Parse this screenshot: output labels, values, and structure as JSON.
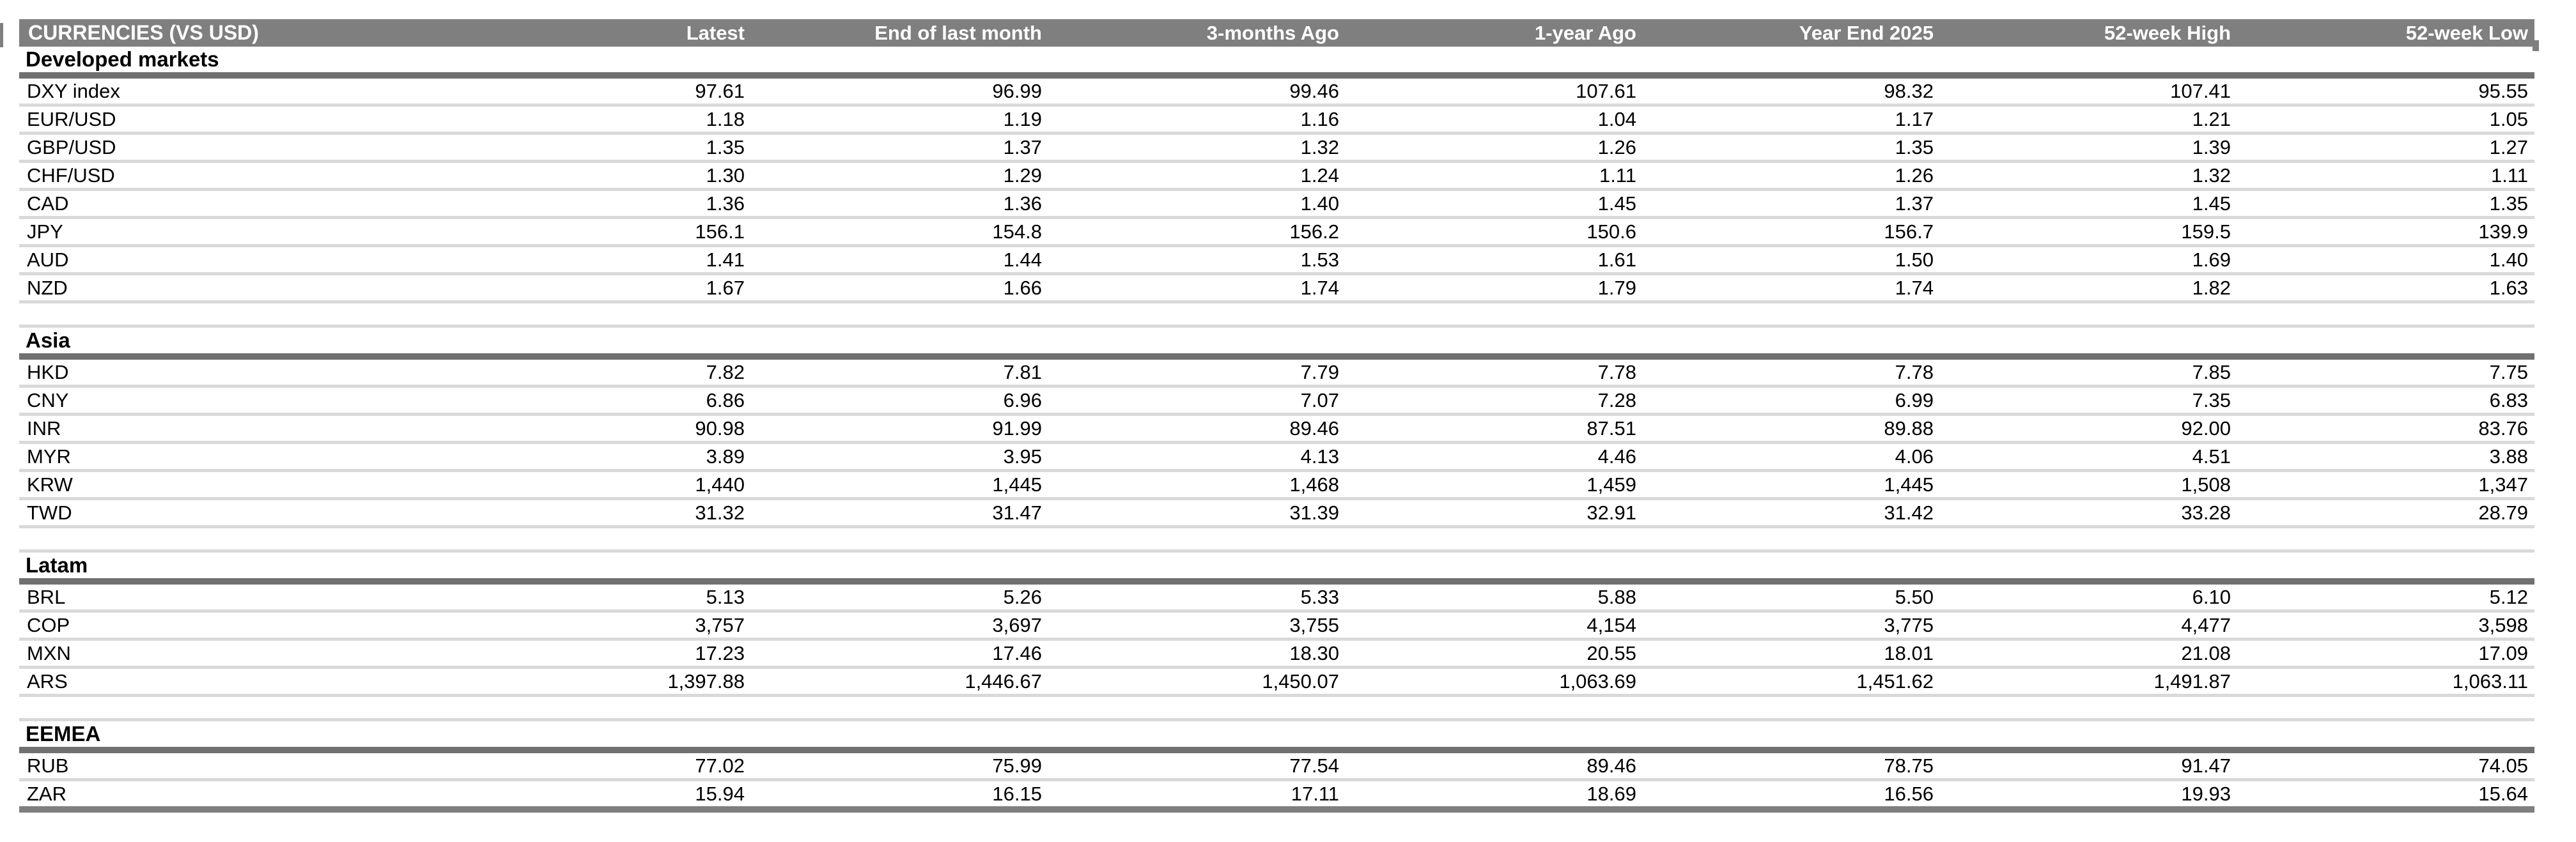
{
  "colors": {
    "header_background": "#7f7f7f",
    "header_text": "#ffffff",
    "section_underline": "#707070",
    "row_separator": "#d9d9d9",
    "table_bottom_bar": "#7f7f7f",
    "body_text": "#000000"
  },
  "table": {
    "title": "CURRENCIES (VS USD)",
    "columns": [
      "Latest",
      "End of last month",
      "3-months Ago",
      "1-year Ago",
      "Year End 2025",
      "52-week High",
      "52-week Low"
    ],
    "sections": [
      {
        "name": "Developed markets",
        "rows": [
          {
            "label": "DXY index",
            "values": [
              "97.61",
              "96.99",
              "99.46",
              "107.61",
              "98.32",
              "107.41",
              "95.55"
            ]
          },
          {
            "label": "EUR/USD",
            "values": [
              "1.18",
              "1.19",
              "1.16",
              "1.04",
              "1.17",
              "1.21",
              "1.05"
            ]
          },
          {
            "label": "GBP/USD",
            "values": [
              "1.35",
              "1.37",
              "1.32",
              "1.26",
              "1.35",
              "1.39",
              "1.27"
            ]
          },
          {
            "label": "CHF/USD",
            "values": [
              "1.30",
              "1.29",
              "1.24",
              "1.11",
              "1.26",
              "1.32",
              "1.11"
            ]
          },
          {
            "label": "CAD",
            "values": [
              "1.36",
              "1.36",
              "1.40",
              "1.45",
              "1.37",
              "1.45",
              "1.35"
            ]
          },
          {
            "label": "JPY",
            "values": [
              "156.1",
              "154.8",
              "156.2",
              "150.6",
              "156.7",
              "159.5",
              "139.9"
            ]
          },
          {
            "label": "AUD",
            "values": [
              "1.41",
              "1.44",
              "1.53",
              "1.61",
              "1.50",
              "1.69",
              "1.40"
            ]
          },
          {
            "label": "NZD",
            "values": [
              "1.67",
              "1.66",
              "1.74",
              "1.79",
              "1.74",
              "1.82",
              "1.63"
            ]
          }
        ]
      },
      {
        "name": "Asia",
        "rows": [
          {
            "label": "HKD",
            "values": [
              "7.82",
              "7.81",
              "7.79",
              "7.78",
              "7.78",
              "7.85",
              "7.75"
            ]
          },
          {
            "label": "CNY",
            "values": [
              "6.86",
              "6.96",
              "7.07",
              "7.28",
              "6.99",
              "7.35",
              "6.83"
            ]
          },
          {
            "label": "INR",
            "values": [
              "90.98",
              "91.99",
              "89.46",
              "87.51",
              "89.88",
              "92.00",
              "83.76"
            ]
          },
          {
            "label": "MYR",
            "values": [
              "3.89",
              "3.95",
              "4.13",
              "4.46",
              "4.06",
              "4.51",
              "3.88"
            ]
          },
          {
            "label": "KRW",
            "values": [
              "1,440",
              "1,445",
              "1,468",
              "1,459",
              "1,445",
              "1,508",
              "1,347"
            ]
          },
          {
            "label": "TWD",
            "values": [
              "31.32",
              "31.47",
              "31.39",
              "32.91",
              "31.42",
              "33.28",
              "28.79"
            ]
          }
        ]
      },
      {
        "name": "Latam",
        "rows": [
          {
            "label": "BRL",
            "values": [
              "5.13",
              "5.26",
              "5.33",
              "5.88",
              "5.50",
              "6.10",
              "5.12"
            ]
          },
          {
            "label": "COP",
            "values": [
              "3,757",
              "3,697",
              "3,755",
              "4,154",
              "3,775",
              "4,477",
              "3,598"
            ]
          },
          {
            "label": "MXN",
            "values": [
              "17.23",
              "17.46",
              "18.30",
              "20.55",
              "18.01",
              "21.08",
              "17.09"
            ]
          },
          {
            "label": "ARS",
            "values": [
              "1,397.88",
              "1,446.67",
              "1,450.07",
              "1,063.69",
              "1,451.62",
              "1,491.87",
              "1,063.11"
            ]
          }
        ]
      },
      {
        "name": "EEMEA",
        "rows": [
          {
            "label": "RUB",
            "values": [
              "77.02",
              "75.99",
              "77.54",
              "89.46",
              "78.75",
              "91.47",
              "74.05"
            ]
          },
          {
            "label": "ZAR",
            "values": [
              "15.94",
              "16.15",
              "17.11",
              "18.69",
              "16.56",
              "19.93",
              "15.64"
            ]
          }
        ]
      }
    ]
  }
}
